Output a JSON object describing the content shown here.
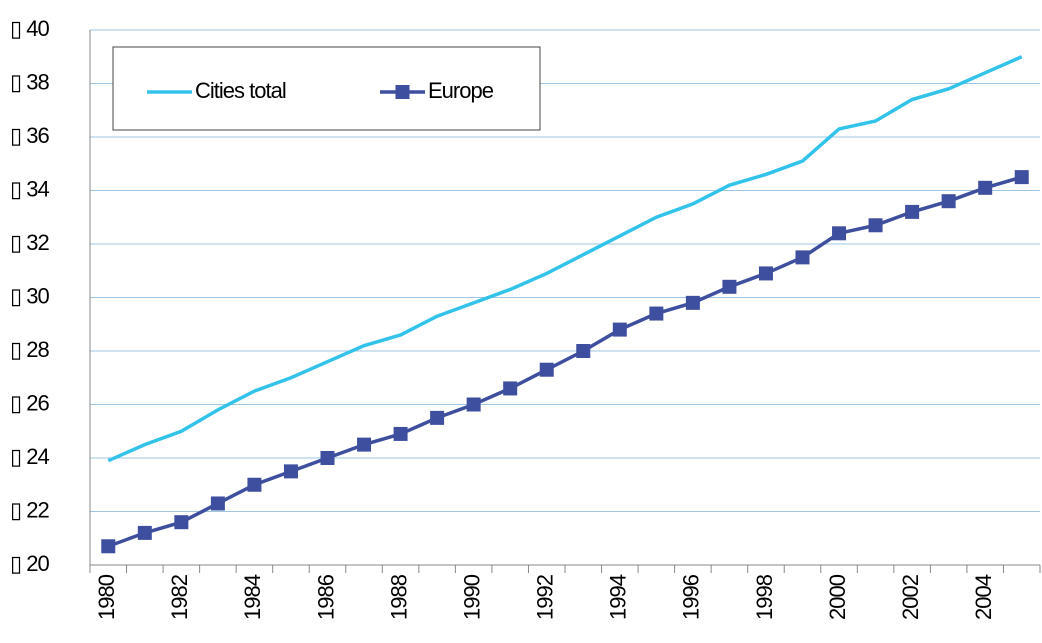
{
  "chart_data": {
    "type": "line",
    "categories": [
      "1980",
      null,
      "1982",
      null,
      "1984",
      null,
      "1986",
      null,
      "1988",
      null,
      "1990",
      null,
      "1992",
      null,
      "1994",
      null,
      "1996",
      null,
      "1998",
      null,
      "2000",
      null,
      "2002",
      null,
      "2004",
      null
    ],
    "series": [
      {
        "name": "Cities total",
        "color": "#33c3ea",
        "marker": "none",
        "values": [
          23.9,
          24.5,
          25.0,
          25.8,
          26.5,
          27.0,
          27.6,
          28.2,
          28.6,
          29.3,
          29.8,
          30.3,
          30.9,
          31.6,
          32.3,
          33.0,
          33.5,
          34.2,
          34.6,
          35.1,
          36.3,
          36.6,
          37.4,
          37.8,
          38.4,
          39.0
        ]
      },
      {
        "name": "Europe",
        "color": "#3f4f9f",
        "marker": "square",
        "values": [
          20.7,
          21.2,
          21.6,
          22.3,
          23.0,
          23.5,
          24.0,
          24.5,
          24.9,
          25.5,
          26.0,
          26.6,
          27.3,
          28.0,
          28.8,
          29.4,
          29.8,
          30.4,
          30.9,
          31.5,
          32.4,
          32.7,
          33.2,
          33.6,
          34.1,
          34.5
        ]
      }
    ],
    "ylim": [
      20,
      40
    ],
    "yticks": [
      {
        "value": 20,
        "label": "▯ 20"
      },
      {
        "value": 22,
        "label": "▯ 22"
      },
      {
        "value": 24,
        "label": "▯ 24"
      },
      {
        "value": 26,
        "label": "▯ 26"
      },
      {
        "value": 28,
        "label": "▯ 28"
      },
      {
        "value": 30,
        "label": "▯ 30"
      },
      {
        "value": 32,
        "label": "▯ 32"
      },
      {
        "value": 34,
        "label": "▯ 34"
      },
      {
        "value": 36,
        "label": "▯ 36"
      },
      {
        "value": 38,
        "label": "▯ 38"
      },
      {
        "value": 40,
        "label": "▯ 40"
      }
    ],
    "grid": true,
    "legend": "top-left"
  }
}
